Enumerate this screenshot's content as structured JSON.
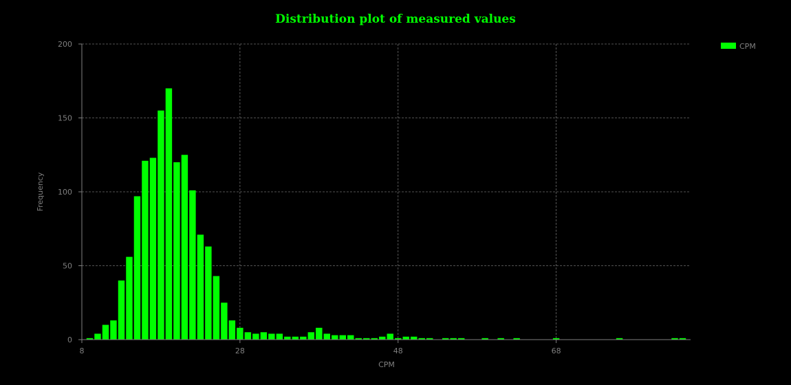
{
  "colors": {
    "background": "#000000",
    "bar": "#00ff00",
    "title": "#00ff00",
    "text": "#7f7f7f",
    "grid": "#6e6e6e",
    "axis": "#7f7f7f"
  },
  "chart_data": {
    "type": "bar",
    "title": "Distribution plot of measured values",
    "xlabel": "CPM",
    "ylabel": "Frequency",
    "xlim": [
      8,
      85
    ],
    "ylim": [
      0,
      200
    ],
    "x_ticks": [
      8,
      28,
      48,
      68
    ],
    "y_ticks": [
      0,
      50,
      100,
      150,
      200
    ],
    "grid": true,
    "legend_position": "top-right",
    "series": [
      {
        "name": "CPM",
        "bin_width": 1,
        "x": [
          9,
          10,
          11,
          12,
          13,
          14,
          15,
          16,
          17,
          18,
          19,
          20,
          21,
          22,
          23,
          24,
          25,
          26,
          27,
          28,
          29,
          30,
          31,
          32,
          33,
          34,
          35,
          36,
          37,
          38,
          39,
          40,
          41,
          42,
          43,
          44,
          45,
          46,
          47,
          48,
          49,
          50,
          51,
          52,
          53,
          54,
          55,
          56,
          57,
          58,
          59,
          60,
          61,
          62,
          63,
          64,
          65,
          66,
          67,
          68,
          69,
          70,
          71,
          72,
          73,
          74,
          75,
          76,
          77,
          78,
          79,
          80,
          81,
          82,
          83,
          84
        ],
        "values": [
          1,
          4,
          10,
          13,
          40,
          56,
          97,
          121,
          123,
          155,
          170,
          120,
          125,
          101,
          71,
          63,
          43,
          25,
          13,
          8,
          5,
          4,
          5,
          4,
          4,
          2,
          2,
          2,
          5,
          8,
          4,
          3,
          3,
          3,
          1,
          1,
          1,
          2,
          4,
          1,
          2,
          2,
          1,
          1,
          0,
          1,
          1,
          1,
          0,
          0,
          1,
          0,
          1,
          0,
          1,
          0,
          0,
          0,
          0,
          1,
          0,
          0,
          0,
          0,
          0,
          0,
          0,
          1,
          0,
          0,
          0,
          0,
          0,
          0,
          1,
          1
        ]
      }
    ]
  }
}
